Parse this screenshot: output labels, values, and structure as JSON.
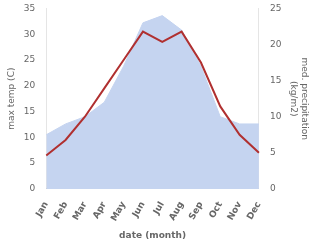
{
  "chart_data": {
    "type": "line",
    "categories": [
      "Jan",
      "Feb",
      "Mar",
      "Apr",
      "May",
      "Jun",
      "Jul",
      "Aug",
      "Sep",
      "Oct",
      "Nov",
      "Dec"
    ],
    "xlabel": "date (month)",
    "ylabel": "max temp (C)",
    "y2label": "med. precipitation\n(kg/m2)",
    "series": [
      {
        "type": "area",
        "color": "#c5d4f0",
        "axis": "y2",
        "values": [
          7.5,
          9,
          10,
          12,
          17,
          23,
          24,
          22,
          17,
          10,
          9,
          9
        ]
      },
      {
        "type": "line",
        "color": "#b03030",
        "values": [
          6.5,
          9.5,
          14,
          19.5,
          25,
          30.5,
          28.5,
          30.5,
          24.5,
          16,
          10.5,
          7
        ]
      }
    ],
    "ylim": [
      0,
      35
    ],
    "yticks": [
      0,
      5,
      10,
      15,
      20,
      25,
      30,
      35
    ],
    "y2lim": [
      0,
      25
    ],
    "y2ticks": [
      0,
      5,
      10,
      15,
      20,
      25
    ],
    "grid": false
  }
}
